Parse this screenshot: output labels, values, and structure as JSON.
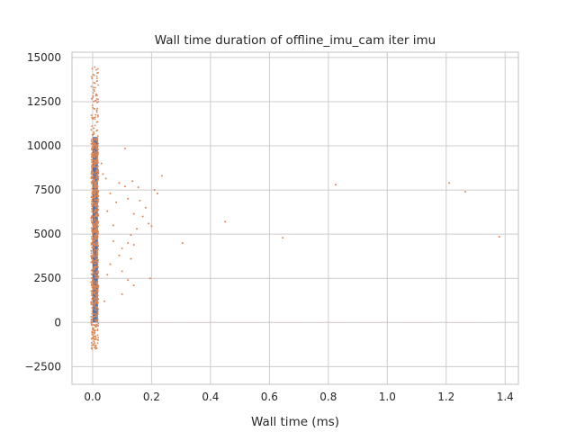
{
  "chart_data": {
    "type": "scatter",
    "title": "Wall time duration of offline_imu_cam iter imu",
    "xlabel": "Wall time (ms)",
    "ylabel": "",
    "xlim": [
      -0.07,
      1.445
    ],
    "ylim": [
      -3500,
      15300
    ],
    "x_ticks": [
      0.0,
      0.2,
      0.4,
      0.6,
      0.8,
      1.0,
      1.2,
      1.4
    ],
    "x_tick_labels": [
      "0.0",
      "0.2",
      "0.4",
      "0.6",
      "0.8",
      "1.0",
      "1.2",
      "1.4"
    ],
    "y_ticks": [
      -2500,
      0,
      2500,
      5000,
      7500,
      10000,
      12500,
      15000
    ],
    "y_tick_labels": [
      "−2500",
      "0",
      "2500",
      "5000",
      "7500",
      "10000",
      "12500",
      "15000"
    ],
    "grid": true,
    "colors": {
      "bars": "#4c72b0",
      "points": "#dd8452",
      "baseline": "#dd8452"
    },
    "bars": {
      "x_start": 0.0,
      "x_end": 0.018,
      "y_start": 0,
      "y_end": 10500
    },
    "dense_cluster": {
      "x_range": [
        -0.005,
        0.02
      ],
      "y_range": [
        -2500,
        14500
      ]
    },
    "series": [
      {
        "type": "scatter",
        "points": [
          [
            0.11,
            9850
          ],
          [
            0.03,
            9000
          ],
          [
            0.035,
            8400
          ],
          [
            0.045,
            8150
          ],
          [
            0.09,
            7900
          ],
          [
            0.11,
            7700
          ],
          [
            0.135,
            8000
          ],
          [
            0.155,
            7650
          ],
          [
            0.21,
            7500
          ],
          [
            0.22,
            7300
          ],
          [
            0.235,
            8300
          ],
          [
            0.12,
            7000
          ],
          [
            0.16,
            6900
          ],
          [
            0.18,
            6500
          ],
          [
            0.14,
            6150
          ],
          [
            0.17,
            6000
          ],
          [
            0.19,
            5600
          ],
          [
            0.2,
            5450
          ],
          [
            0.15,
            5300
          ],
          [
            0.13,
            4950
          ],
          [
            0.12,
            4500
          ],
          [
            0.14,
            4400
          ],
          [
            0.1,
            4200
          ],
          [
            0.09,
            3800
          ],
          [
            0.13,
            3600
          ],
          [
            0.1,
            2900
          ],
          [
            0.12,
            2400
          ],
          [
            0.14,
            2100
          ],
          [
            0.1,
            1600
          ],
          [
            0.195,
            2500
          ],
          [
            0.305,
            4500
          ],
          [
            0.45,
            5700
          ],
          [
            0.645,
            4800
          ],
          [
            0.825,
            7800
          ],
          [
            1.21,
            7900
          ],
          [
            1.265,
            7400
          ],
          [
            1.38,
            4850
          ],
          [
            0.06,
            3300
          ],
          [
            0.07,
            5500
          ],
          [
            0.08,
            6800
          ],
          [
            0.05,
            6300
          ],
          [
            0.06,
            7300
          ],
          [
            0.07,
            4600
          ],
          [
            0.05,
            2700
          ],
          [
            0.04,
            1200
          ]
        ]
      }
    ],
    "baseline": {
      "y": 0,
      "x_range": [
        0.0,
        1.38
      ]
    }
  }
}
